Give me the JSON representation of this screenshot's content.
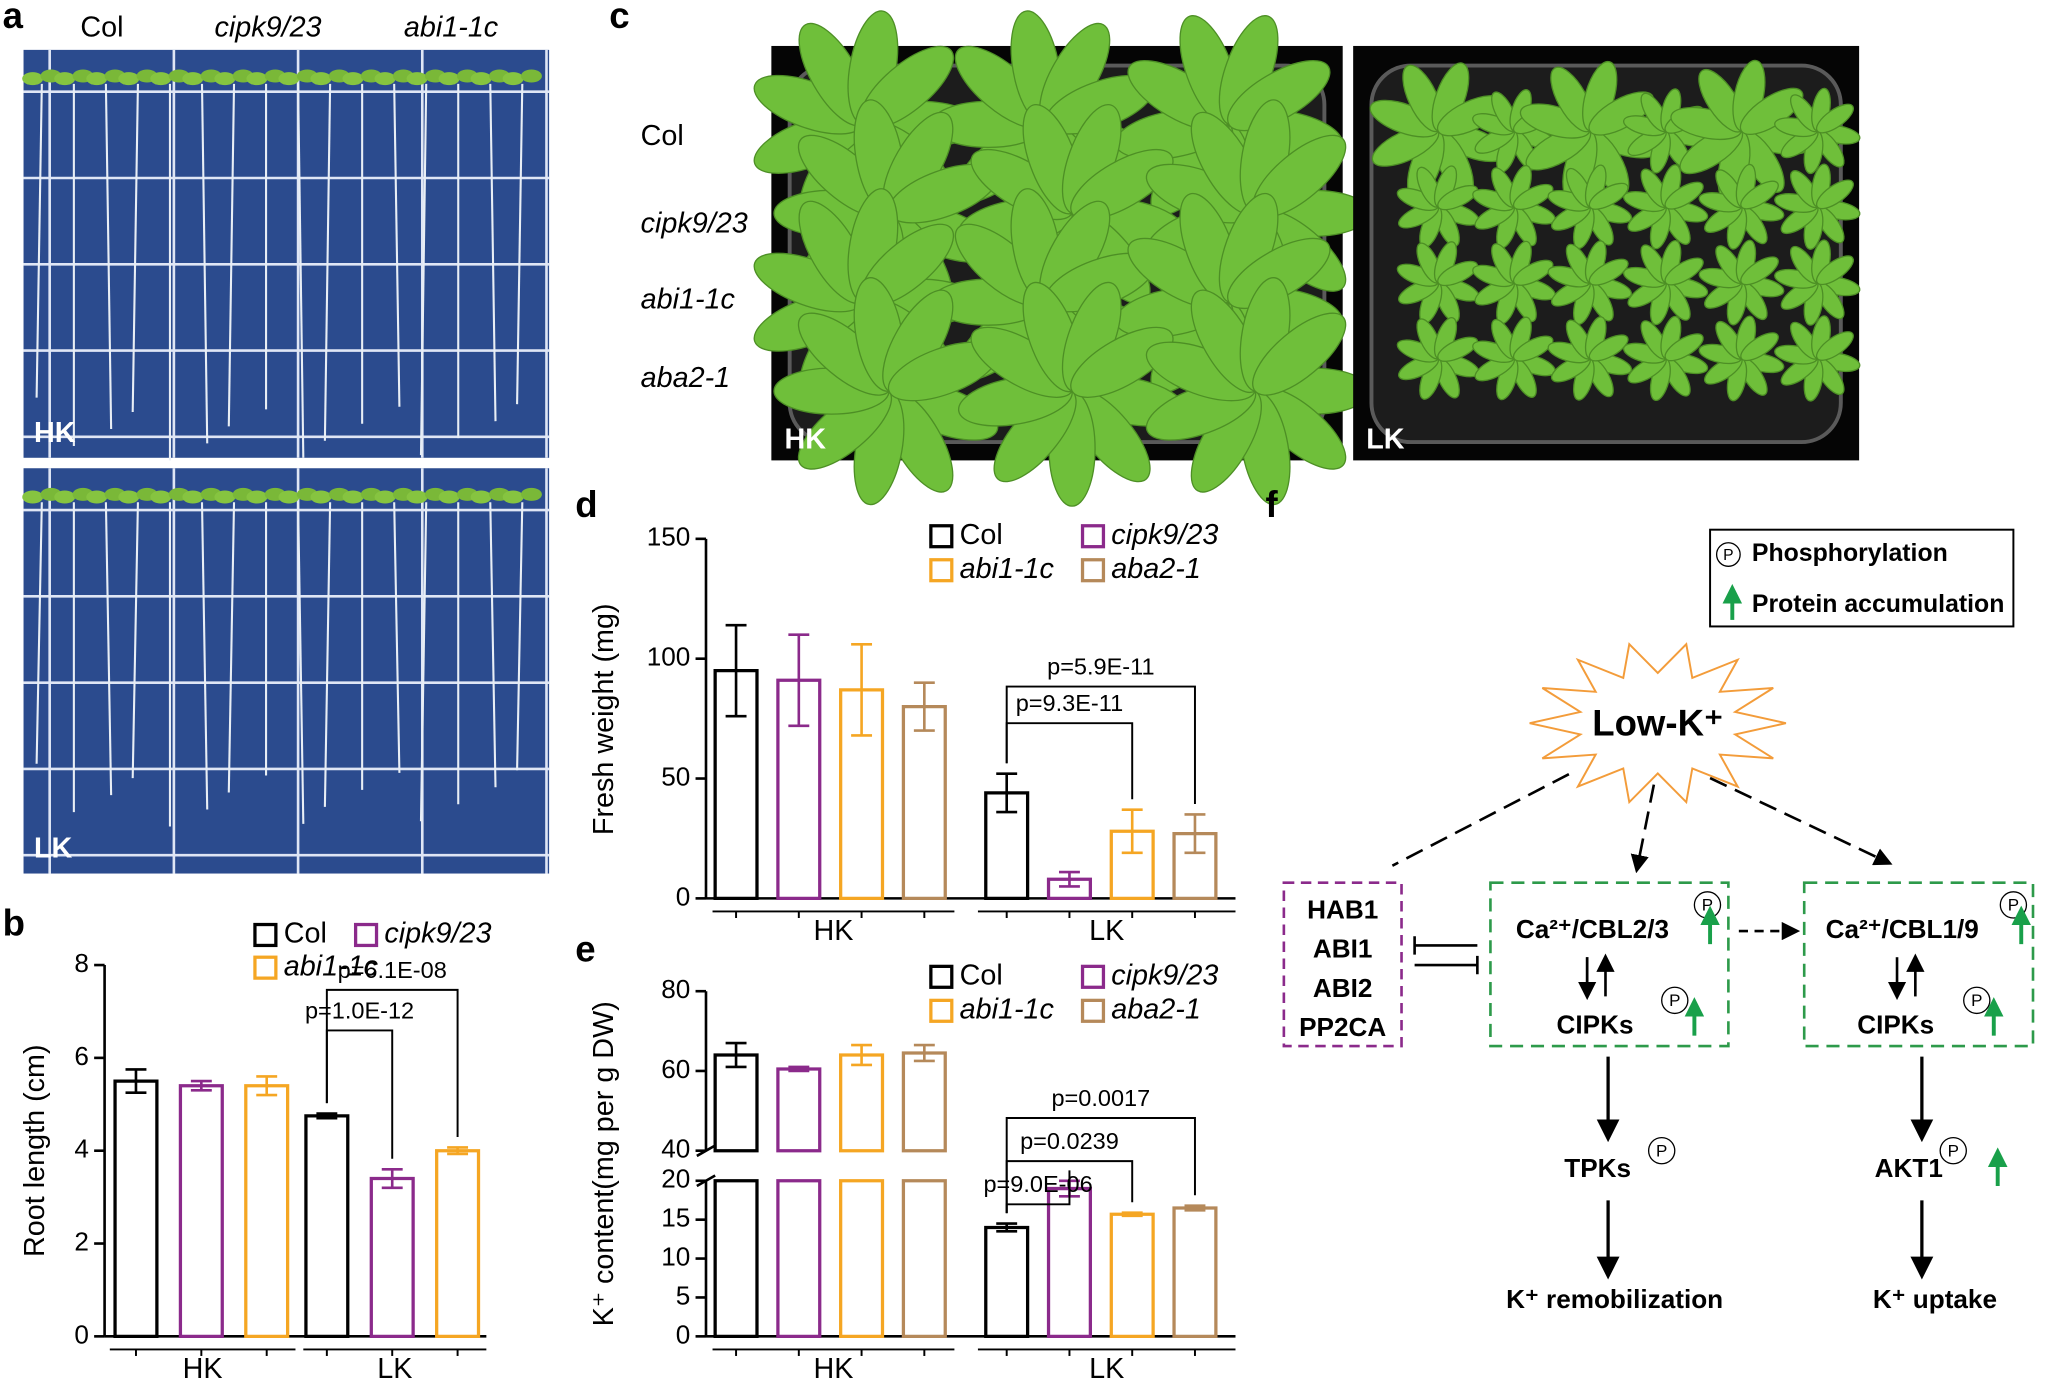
{
  "panels": {
    "a": {
      "letter": "a",
      "columns": [
        "Col",
        "cipk9/23",
        "abi1-1c"
      ],
      "conditions": [
        "HK",
        "LK"
      ]
    },
    "c": {
      "letter": "c",
      "rows": [
        "Col",
        "cipk9/23",
        "abi1-1c",
        "aba2-1"
      ],
      "conditions": [
        "HK",
        "LK"
      ]
    },
    "f": {
      "letter": "f",
      "legend": {
        "symbol": "P",
        "phosphorylation": "Phosphorylation",
        "accumulation": "Protein accumulation"
      },
      "stimulus": "Low-K⁺",
      "phosphatases": [
        "HAB1",
        "ABI1",
        "ABI2",
        "PP2CA"
      ],
      "module1": {
        "sensor": "Ca²⁺/CBL2/3",
        "kinase": "CIPKs"
      },
      "module2": {
        "sensor": "Ca²⁺/CBL1/9",
        "kinase": "CIPKs"
      },
      "target1": "TPKs",
      "target2": "AKT1",
      "outcome1": "K⁺ remobilization",
      "outcome2": "K⁺ uptake"
    }
  },
  "chart_data": [
    {
      "type": "bar",
      "panel": "b",
      "ylabel": "Root length (cm)",
      "ylim": [
        0,
        8
      ],
      "yticks": [
        0,
        2,
        4,
        6,
        8
      ],
      "groups": [
        "HK",
        "LK"
      ],
      "series": [
        {
          "name": "Col",
          "color": "#000000",
          "values": [
            5.5,
            4.75
          ],
          "errors": [
            0.25,
            0.05
          ]
        },
        {
          "name": "cipk9/23",
          "color": "#8b2a8b",
          "values": [
            5.4,
            3.4
          ],
          "errors": [
            0.1,
            0.2
          ]
        },
        {
          "name": "abi1-1c",
          "color": "#f5a623",
          "values": [
            5.4,
            4.0
          ],
          "errors": [
            0.2,
            0.07
          ]
        }
      ],
      "annotations": [
        "p=6.1E-08",
        "p=1.0E-12"
      ]
    },
    {
      "type": "bar",
      "panel": "d",
      "ylabel": "Fresh weight (mg)",
      "ylim": [
        0,
        150
      ],
      "yticks": [
        0,
        50,
        100,
        150
      ],
      "groups": [
        "HK",
        "LK"
      ],
      "series": [
        {
          "name": "Col",
          "color": "#000000",
          "values": [
            95,
            44
          ],
          "errors": [
            19,
            8
          ]
        },
        {
          "name": "cipk9/23",
          "color": "#8b2a8b",
          "values": [
            91,
            8
          ],
          "errors": [
            19,
            3
          ]
        },
        {
          "name": "abi1-1c",
          "color": "#f5a623",
          "values": [
            87,
            28
          ],
          "errors": [
            19,
            9
          ]
        },
        {
          "name": "aba2-1",
          "color": "#b5895a",
          "values": [
            80,
            27
          ],
          "errors": [
            10,
            8
          ]
        }
      ],
      "annotations": [
        "p=5.9E-11",
        "p=9.3E-11"
      ]
    },
    {
      "type": "bar",
      "panel": "e",
      "ylabel": "K⁺ content(mg per g DW)",
      "ylim": [
        0,
        80
      ],
      "ybreak": [
        20,
        40
      ],
      "yticks": [
        0,
        5,
        10,
        15,
        20,
        40,
        60,
        80
      ],
      "groups": [
        "HK",
        "LK"
      ],
      "series": [
        {
          "name": "Col",
          "color": "#000000",
          "values": [
            64,
            14
          ],
          "errors": [
            3,
            0.5
          ]
        },
        {
          "name": "cipk9/23",
          "color": "#8b2a8b",
          "values": [
            60.5,
            19
          ],
          "errors": [
            0.5,
            1
          ]
        },
        {
          "name": "abi1-1c",
          "color": "#f5a623",
          "values": [
            64,
            15.7
          ],
          "errors": [
            2.5,
            0.2
          ]
        },
        {
          "name": "aba2-1",
          "color": "#b5895a",
          "values": [
            64.5,
            16.5
          ],
          "errors": [
            2,
            0.3
          ]
        }
      ],
      "annotations": [
        "p=0.0017",
        "p=0.0239",
        "p=9.0E-06"
      ]
    }
  ]
}
